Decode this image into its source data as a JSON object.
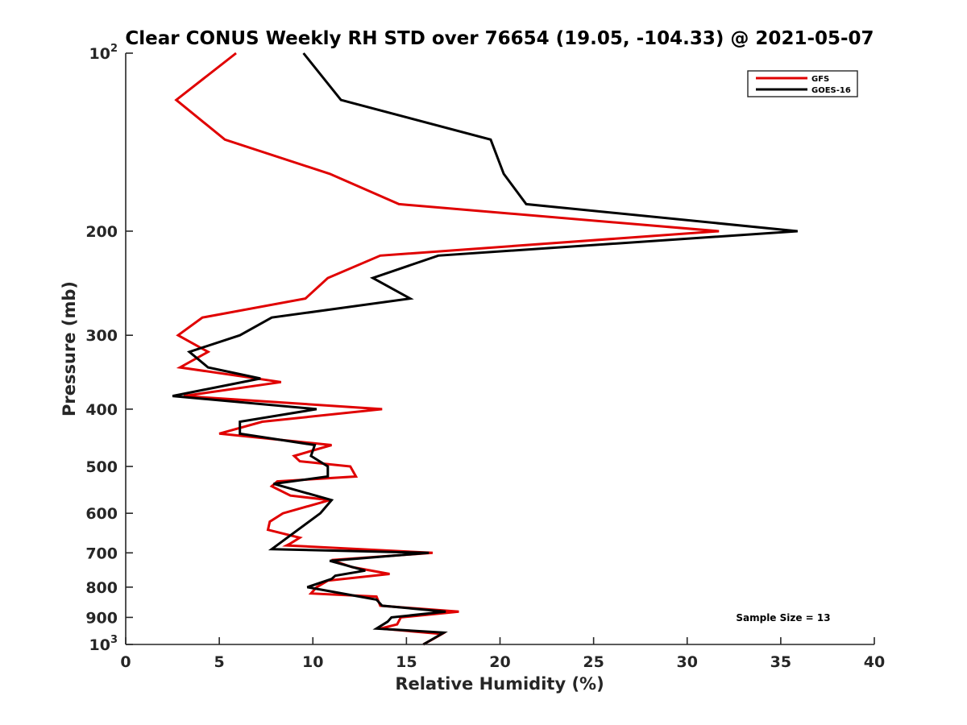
{
  "chart_data": {
    "type": "line",
    "title": "Clear CONUS Weekly RH STD over 76654 (19.05, -104.33) @ 2021-05-07",
    "xlabel": "Relative Humidity (%)",
    "ylabel": "Pressure (mb)",
    "xlim": [
      0,
      40
    ],
    "ylim": [
      100,
      1000
    ],
    "yscale": "log",
    "yreversed": true,
    "grid": false,
    "xticks": [
      0,
      5,
      10,
      15,
      20,
      25,
      30,
      35,
      40
    ],
    "xtick_labels": [
      "0",
      "5",
      "10",
      "15",
      "20",
      "25",
      "30",
      "35",
      "40"
    ],
    "yticks": [
      100,
      200,
      300,
      400,
      500,
      600,
      700,
      800,
      900,
      1000
    ],
    "ytick_labels": [
      "10^2",
      "200",
      "300",
      "400",
      "500",
      "600",
      "700",
      "800",
      "900",
      "10^3"
    ],
    "legend_position": "top-right",
    "annotation": "Sample Size = 13",
    "series": [
      {
        "name": "GFS",
        "color": "#e00000",
        "points": [
          [
            5.9,
            100
          ],
          [
            2.7,
            120
          ],
          [
            5.3,
            140
          ],
          [
            10.9,
            160
          ],
          [
            14.6,
            180
          ],
          [
            31.7,
            200
          ],
          [
            13.6,
            220
          ],
          [
            10.8,
            240
          ],
          [
            9.6,
            260
          ],
          [
            4.1,
            280
          ],
          [
            2.8,
            300
          ],
          [
            4.4,
            320
          ],
          [
            2.9,
            340
          ],
          [
            8.3,
            360
          ],
          [
            3.1,
            380
          ],
          [
            13.7,
            400
          ],
          [
            7.3,
            420
          ],
          [
            5.0,
            440
          ],
          [
            11.0,
            460
          ],
          [
            9.0,
            480
          ],
          [
            9.3,
            490
          ],
          [
            12.0,
            500
          ],
          [
            12.3,
            520
          ],
          [
            8.1,
            530
          ],
          [
            7.8,
            540
          ],
          [
            8.8,
            560
          ],
          [
            10.9,
            570
          ],
          [
            8.4,
            600
          ],
          [
            7.7,
            620
          ],
          [
            7.6,
            640
          ],
          [
            9.3,
            660
          ],
          [
            8.8,
            675
          ],
          [
            8.6,
            680
          ],
          [
            16.4,
            700
          ],
          [
            11.0,
            720
          ],
          [
            12.1,
            740
          ],
          [
            14.1,
            760
          ],
          [
            10.8,
            780
          ],
          [
            10.2,
            800
          ],
          [
            9.9,
            820
          ],
          [
            13.4,
            830
          ],
          [
            13.6,
            860
          ],
          [
            17.8,
            880
          ],
          [
            14.7,
            900
          ],
          [
            14.5,
            925
          ],
          [
            13.6,
            940
          ],
          [
            16.9,
            960
          ],
          [
            16.4,
            980
          ],
          [
            15.9,
            1000
          ]
        ]
      },
      {
        "name": "GOES-16",
        "color": "#000000",
        "points": [
          [
            9.5,
            100
          ],
          [
            11.5,
            120
          ],
          [
            19.5,
            140
          ],
          [
            20.2,
            160
          ],
          [
            21.4,
            180
          ],
          [
            35.9,
            200
          ],
          [
            16.7,
            220
          ],
          [
            13.2,
            240
          ],
          [
            15.2,
            260
          ],
          [
            7.8,
            280
          ],
          [
            6.1,
            300
          ],
          [
            3.4,
            320
          ],
          [
            4.4,
            340
          ],
          [
            7.2,
            355
          ],
          [
            2.5,
            380
          ],
          [
            10.2,
            400
          ],
          [
            6.1,
            420
          ],
          [
            6.1,
            440
          ],
          [
            10.1,
            460
          ],
          [
            9.9,
            480
          ],
          [
            10.8,
            500
          ],
          [
            10.8,
            520
          ],
          [
            7.9,
            535
          ],
          [
            11.0,
            570
          ],
          [
            10.4,
            600
          ],
          [
            7.8,
            690
          ],
          [
            16.2,
            700
          ],
          [
            10.9,
            722
          ],
          [
            12.8,
            750
          ],
          [
            11.2,
            765
          ],
          [
            11.0,
            775
          ],
          [
            9.7,
            800
          ],
          [
            13.4,
            840
          ],
          [
            13.7,
            860
          ],
          [
            17.1,
            880
          ],
          [
            14.2,
            900
          ],
          [
            14.0,
            915
          ],
          [
            13.4,
            940
          ],
          [
            17.0,
            955
          ],
          [
            15.9,
            1000
          ]
        ]
      }
    ]
  }
}
